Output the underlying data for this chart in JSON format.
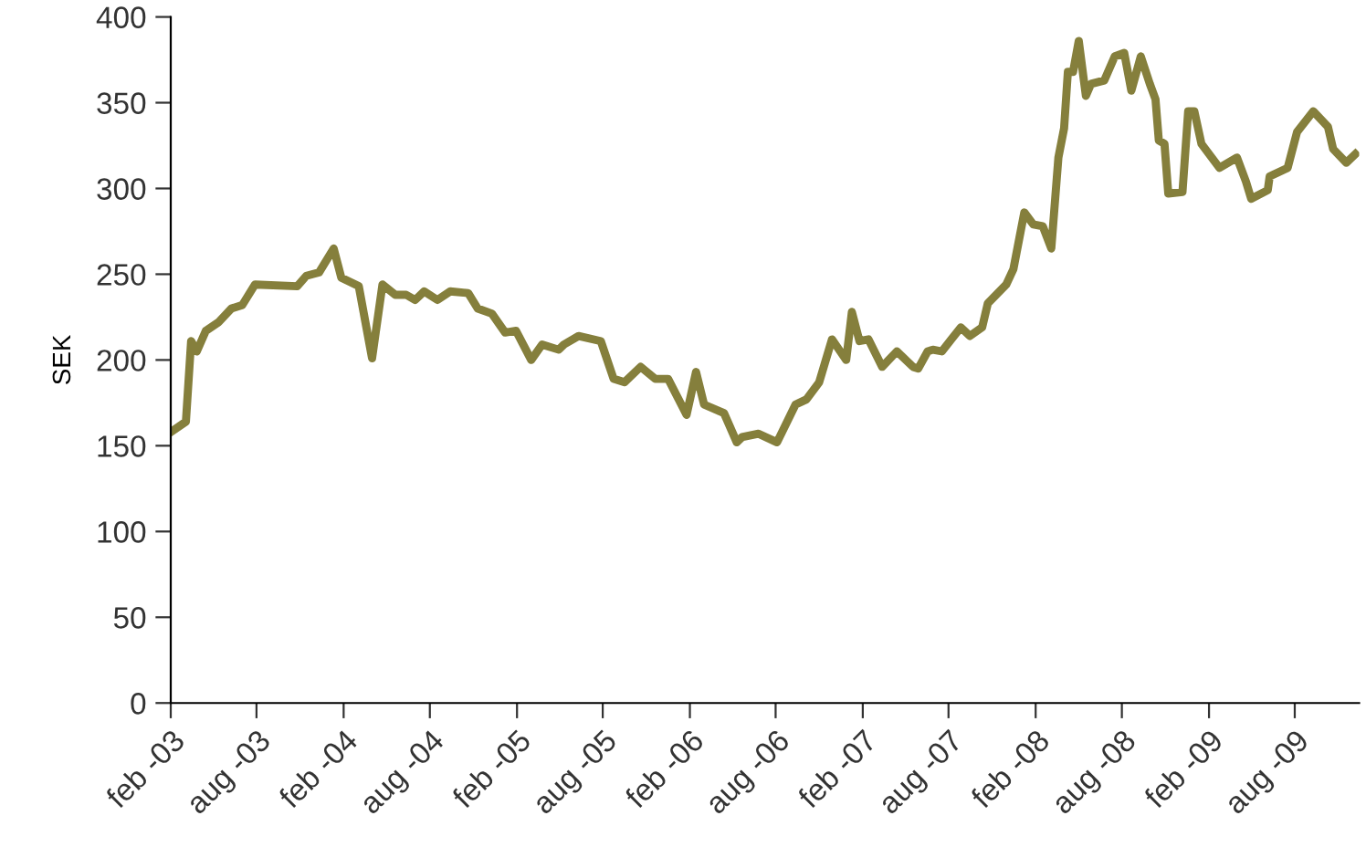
{
  "chart_data": {
    "type": "line",
    "ylabel": "SEK",
    "x": [
      "2003-02-01",
      "2003-03-05",
      "2003-03-16",
      "2003-03-28",
      "2003-04-16",
      "2003-05-13",
      "2003-06-09",
      "2003-07-02",
      "2003-07-29",
      "2003-10-26",
      "2003-11-14",
      "2003-12-11",
      "2004-01-11",
      "2004-01-27",
      "2004-03-04",
      "2004-04-01",
      "2004-04-23",
      "2004-05-20",
      "2004-06-12",
      "2004-07-01",
      "2004-07-20",
      "2004-08-17",
      "2004-09-13",
      "2004-10-21",
      "2004-11-10",
      "2004-12-10",
      "2005-01-07",
      "2005-01-30",
      "2005-03-03",
      "2005-03-26",
      "2005-04-30",
      "2005-05-11",
      "2005-06-11",
      "2005-07-28",
      "2005-08-24",
      "2005-09-16",
      "2005-10-20",
      "2005-11-20",
      "2005-12-17",
      "2006-01-25",
      "2006-02-14",
      "2006-03-03",
      "2006-04-14",
      "2006-05-11",
      "2006-05-22",
      "2006-06-26",
      "2006-08-04",
      "2006-09-12",
      "2006-10-05",
      "2006-11-01",
      "2006-11-28",
      "2006-12-28",
      "2007-01-09",
      "2007-01-25",
      "2007-02-13",
      "2007-03-14",
      "2007-04-14",
      "2007-05-18",
      "2007-05-29",
      "2007-06-18",
      "2007-06-29",
      "2007-07-18",
      "2007-08-07",
      "2007-08-27",
      "2007-09-15",
      "2007-10-11",
      "2007-10-23",
      "2007-12-01",
      "2007-12-16",
      "2008-01-08",
      "2008-01-27",
      "2008-02-16",
      "2008-03-05",
      "2008-03-20",
      "2008-04-01",
      "2008-04-09",
      "2008-04-20",
      "2008-05-02",
      "2008-05-17",
      "2008-05-28",
      "2008-06-25",
      "2008-07-17",
      "2008-08-06",
      "2008-08-21",
      "2008-09-10",
      "2008-09-29",
      "2008-10-11",
      "2008-10-18",
      "2008-10-30",
      "2008-11-07",
      "2008-12-07",
      "2008-12-19",
      "2009-01-01",
      "2009-01-16",
      "2009-02-23",
      "2009-04-01",
      "2009-04-20",
      "2009-05-01",
      "2009-06-05",
      "2009-06-09",
      "2009-07-17",
      "2009-08-06",
      "2009-09-09",
      "2009-10-10",
      "2009-10-21",
      "2009-11-18",
      "2009-12-07"
    ],
    "series": [
      {
        "color": "#857f3c",
        "values": [
          158,
          164,
          211,
          205,
          217,
          222,
          230,
          232,
          244,
          243,
          249,
          251,
          265,
          248,
          243,
          201,
          244,
          238,
          238,
          235,
          240,
          235,
          240,
          239,
          230,
          227,
          216,
          217,
          200,
          209,
          206,
          209,
          214,
          211,
          189,
          187,
          196,
          189,
          189,
          168,
          193,
          174,
          169,
          152,
          155,
          157,
          152,
          174,
          177,
          187,
          212,
          200,
          228,
          211,
          212,
          196,
          205,
          196,
          195,
          205,
          206,
          205,
          212,
          219,
          214,
          219,
          233,
          244,
          253,
          286,
          279,
          278,
          265,
          318,
          335,
          368,
          368,
          386,
          354,
          361,
          363,
          377,
          379,
          357,
          377,
          361,
          352,
          328,
          326,
          297,
          298,
          345,
          345,
          326,
          312,
          318,
          304,
          294,
          299,
          307,
          312,
          333,
          345,
          336,
          323,
          315,
          320
        ]
      }
    ],
    "xlim": [
      "2003-02-01",
      "2009-12-15"
    ],
    "xticks": [
      {
        "value": "2003-02-01",
        "label": "feb -03"
      },
      {
        "value": "2003-08-01",
        "label": "aug -03"
      },
      {
        "value": "2004-02-01",
        "label": "feb -04"
      },
      {
        "value": "2004-08-01",
        "label": "aug -04"
      },
      {
        "value": "2005-02-01",
        "label": "feb -05"
      },
      {
        "value": "2005-08-01",
        "label": "aug -05"
      },
      {
        "value": "2006-02-01",
        "label": "feb -06"
      },
      {
        "value": "2006-08-01",
        "label": "aug -06"
      },
      {
        "value": "2007-02-01",
        "label": "feb -07"
      },
      {
        "value": "2007-08-01",
        "label": "aug -07"
      },
      {
        "value": "2008-02-01",
        "label": "feb -08"
      },
      {
        "value": "2008-08-01",
        "label": "aug -08"
      },
      {
        "value": "2009-02-01",
        "label": "feb -09"
      },
      {
        "value": "2009-08-01",
        "label": "aug -09"
      }
    ],
    "ylim": [
      0,
      400
    ],
    "yticks": [
      0,
      50,
      100,
      150,
      200,
      250,
      300,
      350,
      400
    ],
    "grid": false,
    "legend": false,
    "marker": "none",
    "line_style": "solid"
  }
}
